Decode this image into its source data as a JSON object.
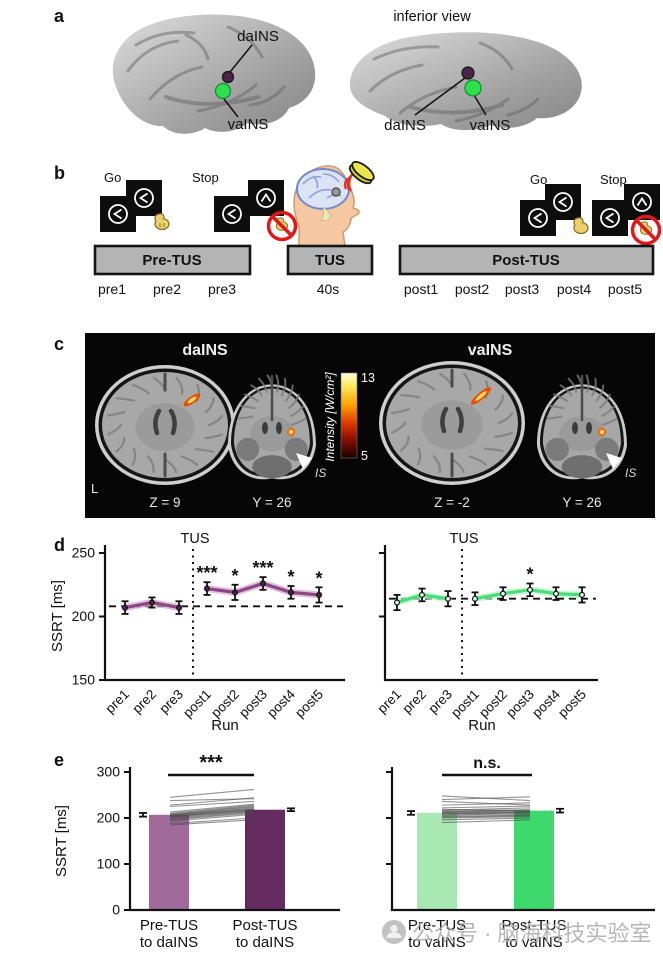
{
  "figure_labels": {
    "a": "a",
    "b": "b",
    "c": "c",
    "d": "d",
    "e": "e"
  },
  "panel_a": {
    "inferior_view": "inferior view",
    "left_dains": "daINS",
    "left_vains": "vaINS",
    "right_dains": "daINS",
    "right_vains": "vaINS",
    "dains_color": "#4f2449",
    "vains_color": "#2ee04e"
  },
  "panel_b": {
    "go_left": "Go",
    "stop_left": "Stop",
    "go_right": "Go",
    "stop_right": "Stop",
    "box_pre": "Pre-TUS",
    "box_tus": "TUS",
    "box_post": "Post-TUS",
    "tus_duration": "40s",
    "runs_pre": [
      "pre1",
      "pre2",
      "pre3"
    ],
    "runs_post": [
      "post1",
      "post2",
      "post3",
      "post4",
      "post5"
    ]
  },
  "panel_c": {
    "title_dains": "daINS",
    "title_vains": "vaINS",
    "coord_1": "Z = 9",
    "coord_2": "Y = 26",
    "coord_3": "Z = -2",
    "coord_4": "Y = 26",
    "hemisphere": "L",
    "arrow_label": "IS",
    "colorbar": {
      "label": "Intensity [W/cm²]",
      "max": "13",
      "min": "5"
    }
  },
  "chart_data": [
    {
      "id": "d-left",
      "type": "line",
      "title": "TUS",
      "xlabel": "Run",
      "ylabel": "SSRT [ms]",
      "categories": [
        "pre1",
        "pre2",
        "pre3",
        "post1",
        "post2",
        "post3",
        "post4",
        "post5"
      ],
      "values": [
        207,
        211,
        207,
        222,
        219,
        226,
        219,
        217
      ],
      "errors": [
        5,
        4,
        5,
        5,
        6,
        5,
        5,
        6
      ],
      "significance": [
        "",
        "",
        "",
        "***",
        "*",
        "***",
        "*",
        "*"
      ],
      "baseline": 208,
      "ylim": [
        150,
        250
      ],
      "yticks": [
        150,
        200,
        250
      ],
      "show_ytick_labels": true,
      "line_color": "#8d4583",
      "halo_color": "#d2a8c9",
      "marker_color": "#4a2345"
    },
    {
      "id": "d-right",
      "type": "line",
      "title": "TUS",
      "xlabel": "Run",
      "ylabel": "",
      "categories": [
        "pre1",
        "pre2",
        "pre3",
        "post1",
        "post2",
        "post3",
        "post4",
        "post5"
      ],
      "values": [
        211,
        217,
        214,
        214,
        218,
        221,
        218,
        217
      ],
      "errors": [
        6,
        5,
        6,
        5,
        5,
        5,
        5,
        6
      ],
      "significance": [
        "",
        "",
        "",
        "",
        "",
        "*",
        "",
        ""
      ],
      "baseline": 214,
      "ylim": [
        150,
        250
      ],
      "yticks": [
        200,
        250
      ],
      "show_ytick_labels": false,
      "line_color": "#4ade77",
      "halo_color": "#b9f2cc",
      "marker_color": "#ffffff"
    },
    {
      "id": "e-left",
      "type": "bar",
      "ylabel": "SSRT [ms]",
      "categories": [
        [
          "Pre-TUS",
          "to daINS"
        ],
        [
          "Post-TUS",
          "to daINS"
        ]
      ],
      "values": [
        207,
        218
      ],
      "errors": [
        4,
        3
      ],
      "bar_colors": [
        "#a06b9b",
        "#652a60"
      ],
      "significance": "***",
      "ylim": [
        0,
        300
      ],
      "yticks": [
        0,
        100,
        200,
        300
      ],
      "show_ytick_labels": true,
      "pairs": [
        [
          245,
          262
        ],
        [
          238,
          242
        ],
        [
          228,
          244
        ],
        [
          225,
          236
        ],
        [
          213,
          230
        ],
        [
          210,
          228
        ],
        [
          208,
          226
        ],
        [
          207,
          224
        ],
        [
          206,
          222
        ],
        [
          205,
          220
        ],
        [
          204,
          219
        ],
        [
          203,
          218
        ],
        [
          202,
          216
        ],
        [
          200,
          215
        ],
        [
          198,
          213
        ],
        [
          196,
          211
        ],
        [
          193,
          208
        ],
        [
          188,
          200
        ],
        [
          185,
          196
        ]
      ]
    },
    {
      "id": "e-right",
      "type": "bar",
      "ylabel": "",
      "categories": [
        [
          "Pre-TUS",
          "to vaINS"
        ],
        [
          "Post-TUS",
          "to vaINS"
        ]
      ],
      "values": [
        211,
        216
      ],
      "errors": [
        4,
        4
      ],
      "bar_colors": [
        "#a8e9b3",
        "#3ed96d"
      ],
      "significance": "n.s.",
      "ylim": [
        0,
        300
      ],
      "yticks": [
        100,
        200,
        300
      ],
      "show_ytick_labels": false,
      "pairs": [
        [
          248,
          238
        ],
        [
          240,
          246
        ],
        [
          236,
          228
        ],
        [
          228,
          233
        ],
        [
          222,
          226
        ],
        [
          219,
          215
        ],
        [
          217,
          222
        ],
        [
          215,
          218
        ],
        [
          214,
          212
        ],
        [
          212,
          217
        ],
        [
          211,
          214
        ],
        [
          210,
          208
        ],
        [
          208,
          213
        ],
        [
          206,
          210
        ],
        [
          204,
          206
        ],
        [
          202,
          205
        ],
        [
          200,
          203
        ],
        [
          196,
          200
        ],
        [
          190,
          196
        ]
      ]
    }
  ],
  "watermark": {
    "text": "公众号 · 脑海科技实验室"
  }
}
